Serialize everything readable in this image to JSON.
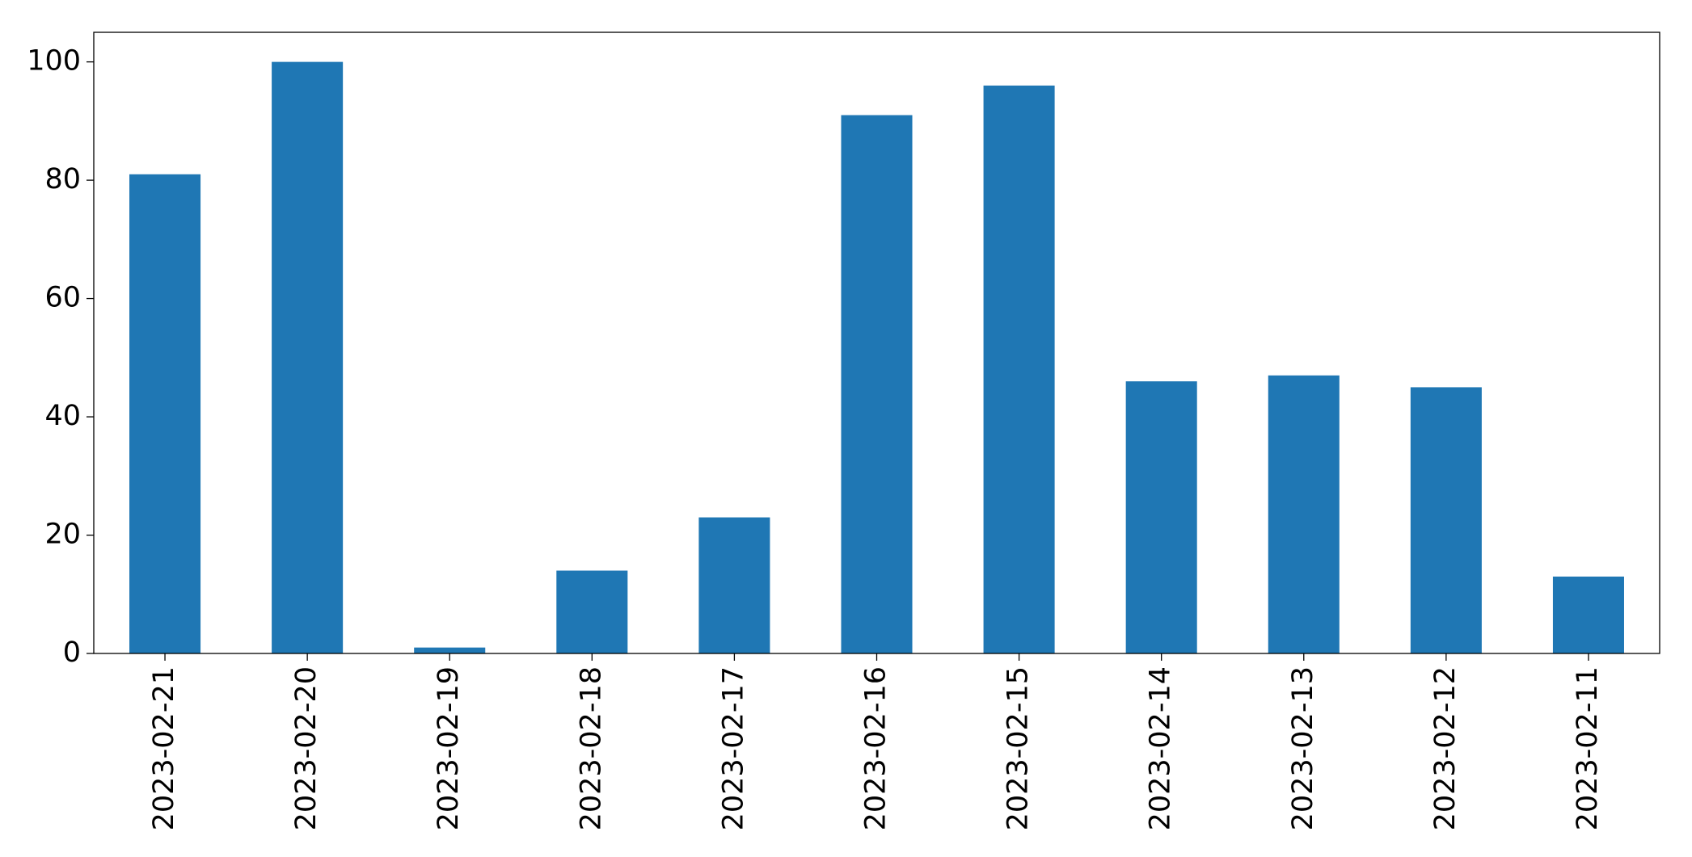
{
  "chart_data": {
    "type": "bar",
    "categories": [
      "2023-02-21",
      "2023-02-20",
      "2023-02-19",
      "2023-02-18",
      "2023-02-17",
      "2023-02-16",
      "2023-02-15",
      "2023-02-14",
      "2023-02-13",
      "2023-02-12",
      "2023-02-11"
    ],
    "values": [
      81,
      100,
      1,
      14,
      23,
      91,
      96,
      46,
      47,
      45,
      13
    ],
    "color": "#1f77b4",
    "ylim": [
      0,
      105
    ],
    "yticks": [
      0,
      20,
      40,
      60,
      80,
      100
    ],
    "grid": false
  }
}
